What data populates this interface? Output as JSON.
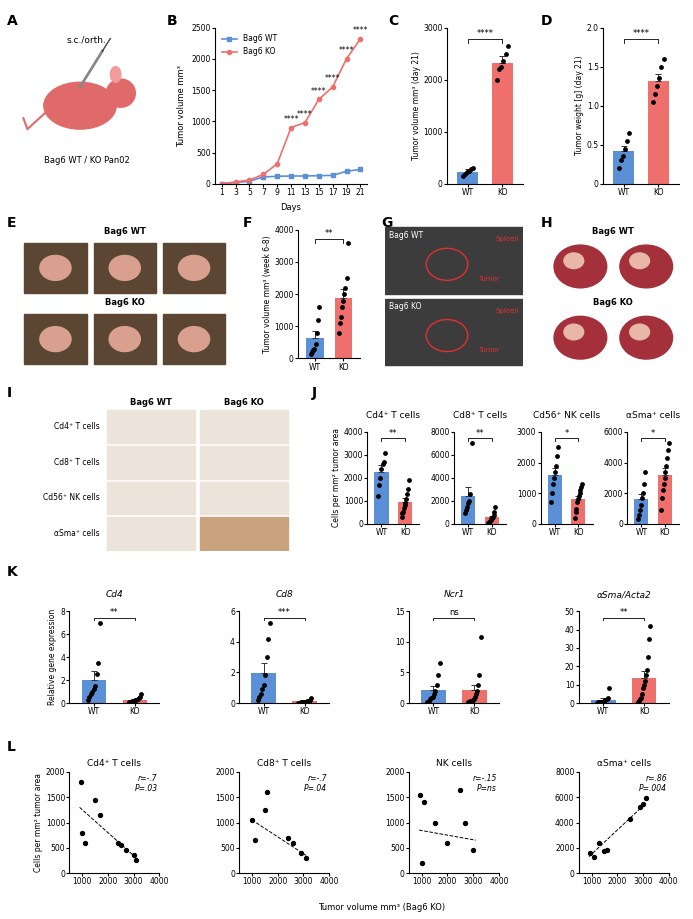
{
  "panel_labels": [
    "A",
    "B",
    "C",
    "D",
    "E",
    "F",
    "G",
    "H",
    "I",
    "J",
    "K",
    "L"
  ],
  "schematic": {
    "route": "s.c./orth.",
    "label": "Bag6 WT / KO Pan02"
  },
  "photos_E": {
    "rows": [
      "Bag6 WT",
      "Bag6 KO"
    ]
  },
  "ultrasound_G": [
    {
      "label": "Bag6 WT",
      "marks": [
        "Spleen",
        "Tumor"
      ]
    },
    {
      "label": "Bag6 KO",
      "marks": [
        "Spleen",
        "Tumor"
      ]
    }
  ],
  "organs_H": {
    "rows": [
      "Bag6 WT",
      "Bag6 KO"
    ]
  },
  "ihc_I": {
    "columns": [
      "Bag6 WT",
      "Bag6 KO"
    ],
    "rows": [
      "Cd4⁺ T cells",
      "Cd8⁺ T cells",
      "Cd56⁺ NK cells",
      "αSma⁺ cells"
    ]
  },
  "shared_xlabel_L": "Tumor volume mm³ (Bag6 KO)",
  "chart_data": [
    {
      "panel": "B",
      "type": "line",
      "xlabel": "Days",
      "ylabel": "Tumor volume mm³",
      "x": [
        1,
        3,
        5,
        7,
        9,
        11,
        13,
        15,
        17,
        19,
        21
      ],
      "xlim": [
        0,
        22
      ],
      "xticks": [
        1,
        3,
        5,
        7,
        9,
        11,
        13,
        15,
        17,
        19,
        21
      ],
      "ylim": [
        0,
        2500
      ],
      "yticks": [
        0,
        500,
        1000,
        1500,
        2000,
        2500
      ],
      "legend": "upper left",
      "series": [
        {
          "name": "Bag6 WT",
          "color": "#5b8fd6",
          "marker": "square",
          "values": [
            0,
            20,
            40,
            110,
            120,
            125,
            125,
            130,
            135,
            200,
            230
          ]
        },
        {
          "name": "Bag6 KO",
          "color": "#ef6f6c",
          "marker": "circle",
          "values": [
            0,
            30,
            60,
            150,
            320,
            900,
            980,
            1350,
            1550,
            2000,
            2320
          ]
        }
      ],
      "significance": [
        {
          "x": 11,
          "text": "****"
        },
        {
          "x": 13,
          "text": "****"
        },
        {
          "x": 15,
          "text": "****"
        },
        {
          "x": 17,
          "text": "****"
        },
        {
          "x": 19,
          "text": "****"
        },
        {
          "x": 21,
          "text": "****"
        }
      ]
    },
    {
      "panel": "C",
      "type": "bar",
      "categories": [
        "WT",
        "KO"
      ],
      "values": [
        230,
        2325
      ],
      "errors": [
        45,
        130
      ],
      "points": [
        [
          150,
          180,
          220,
          250,
          280,
          300
        ],
        [
          2000,
          2200,
          2250,
          2350,
          2500,
          2650
        ]
      ],
      "colors": [
        "#5b8fd6",
        "#ef6f6c"
      ],
      "ylabel": "Tumor volume mm³ (day 21)",
      "ylim": [
        0,
        3000
      ],
      "yticks": [
        0,
        1000,
        2000,
        3000
      ],
      "significance": "****"
    },
    {
      "panel": "D",
      "type": "bar",
      "categories": [
        "WT",
        "KO"
      ],
      "values": [
        0.42,
        1.32
      ],
      "errors": [
        0.07,
        0.09
      ],
      "points": [
        [
          0.2,
          0.3,
          0.35,
          0.45,
          0.55,
          0.65
        ],
        [
          1.05,
          1.15,
          1.25,
          1.35,
          1.5,
          1.6
        ]
      ],
      "colors": [
        "#5b8fd6",
        "#ef6f6c"
      ],
      "ylabel": "Tumor weight [g] (day 21)",
      "ylim": [
        0,
        2.0
      ],
      "yticks": [
        0,
        0.5,
        {
          "value": 1,
          "label": "1.0"
        },
        1.5,
        {
          "value": 2,
          "label": "2.0"
        }
      ],
      "significance": "****"
    },
    {
      "panel": "F",
      "type": "bar",
      "categories": [
        "WT",
        "KO"
      ],
      "values": [
        620,
        1880
      ],
      "errors": [
        230,
        290
      ],
      "points": [
        [
          150,
          200,
          250,
          300,
          450,
          800,
          1200,
          1600
        ],
        [
          800,
          1100,
          1300,
          1600,
          1800,
          2000,
          2200,
          2500,
          3600
        ]
      ],
      "colors": [
        "#5b8fd6",
        "#ef6f6c"
      ],
      "ylabel": "Tumor volume mm³ (week 6-8)",
      "ylim": [
        0,
        4000
      ],
      "yticks": [
        0,
        1000,
        2000,
        3000,
        4000
      ],
      "significance": "**"
    },
    {
      "panel": "J",
      "type": "bar",
      "title": "Cd4⁺ T cells",
      "ylabel": "Cells per mm² tumor area",
      "categories": [
        "WT",
        "KO"
      ],
      "values": [
        2240,
        945
      ],
      "errors": [
        300,
        170
      ],
      "points": [
        [
          1200,
          1700,
          2000,
          2400,
          2600,
          2700,
          3100
        ],
        [
          300,
          450,
          500,
          700,
          800,
          900,
          1100,
          1300,
          1500,
          1900
        ]
      ],
      "colors": [
        "#5b8fd6",
        "#ef6f6c"
      ],
      "ylim": [
        0,
        4000
      ],
      "yticks": [
        0,
        1000,
        2000,
        3000,
        4000
      ],
      "significance": "**"
    },
    {
      "type": "bar",
      "title": "Cd8⁺ T cells",
      "categories": [
        "WT",
        "KO"
      ],
      "values": [
        2430,
        565
      ],
      "errors": [
        800,
        140
      ],
      "points": [
        [
          900,
          1200,
          1500,
          1800,
          2000,
          2600,
          7000
        ],
        [
          100,
          200,
          250,
          300,
          400,
          500,
          600,
          800,
          1000,
          1500
        ]
      ],
      "colors": [
        "#5b8fd6",
        "#ef6f6c"
      ],
      "ylim": [
        0,
        8000
      ],
      "yticks": [
        0,
        2000,
        4000,
        6000,
        8000
      ],
      "significance": "**"
    },
    {
      "type": "bar",
      "title": "Cd56⁺ NK cells",
      "categories": [
        "WT",
        "KO"
      ],
      "values": [
        1600,
        810
      ],
      "errors": [
        220,
        110
      ],
      "points": [
        [
          700,
          1000,
          1300,
          1500,
          1700,
          1900,
          2200,
          2500
        ],
        [
          200,
          400,
          500,
          700,
          800,
          900,
          1000,
          1100,
          1200,
          1300
        ]
      ],
      "colors": [
        "#5b8fd6",
        "#ef6f6c"
      ],
      "ylim": [
        0,
        3000
      ],
      "yticks": [
        0,
        1000,
        2000,
        3000
      ],
      "significance": "*"
    },
    {
      "type": "bar",
      "title": "αSma⁺ cells",
      "categories": [
        "WT",
        "KO"
      ],
      "values": [
        1590,
        3200
      ],
      "errors": [
        380,
        450
      ],
      "points": [
        [
          300,
          600,
          900,
          1200,
          1700,
          2000,
          2600,
          3400
        ],
        [
          900,
          1700,
          2200,
          2600,
          3000,
          3400,
          3800,
          4300,
          4800,
          5300
        ]
      ],
      "colors": [
        "#5b8fd6",
        "#ef6f6c"
      ],
      "ylim": [
        0,
        6000
      ],
      "yticks": [
        0,
        2000,
        4000,
        6000
      ],
      "significance": "*"
    },
    {
      "panel": "K",
      "type": "bar",
      "title": "Cd4",
      "ylabel": "Relative gene expression",
      "categories": [
        "WT",
        "KO"
      ],
      "values": [
        2.03,
        0.28
      ],
      "errors": [
        0.8,
        0.06
      ],
      "points": [
        [
          0.3,
          0.5,
          0.8,
          1.0,
          1.2,
          1.5,
          2.5,
          3.5,
          7.0
        ],
        [
          0.05,
          0.1,
          0.1,
          0.15,
          0.2,
          0.2,
          0.25,
          0.3,
          0.35,
          0.4,
          0.5,
          0.8
        ]
      ],
      "colors": [
        "#5b8fd6",
        "#ef6f6c"
      ],
      "ylim": [
        0,
        8
      ],
      "yticks": [
        0,
        2,
        4,
        6,
        8
      ],
      "significance": "**"
    },
    {
      "type": "bar",
      "title": "Cd8",
      "categories": [
        "WT",
        "KO"
      ],
      "values": [
        1.94,
        0.11
      ],
      "errors": [
        0.65,
        0.02
      ],
      "points": [
        [
          0.2,
          0.4,
          0.6,
          0.9,
          1.2,
          1.8,
          3.0,
          4.2,
          5.2
        ],
        [
          0.02,
          0.03,
          0.05,
          0.05,
          0.06,
          0.08,
          0.1,
          0.1,
          0.12,
          0.15,
          0.2,
          0.3
        ]
      ],
      "colors": [
        "#5b8fd6",
        "#ef6f6c"
      ],
      "ylim": [
        0,
        6
      ],
      "yticks": [
        0,
        2,
        4,
        6
      ],
      "significance": "***"
    },
    {
      "type": "bar",
      "title": "Ncr1",
      "categories": [
        "WT",
        "KO"
      ],
      "values": [
        2.05,
        2.08
      ],
      "errors": [
        0.65,
        0.9
      ],
      "points": [
        [
          0.2,
          0.4,
          0.6,
          0.8,
          1.0,
          1.5,
          2.0,
          3.0,
          4.5,
          6.5
        ],
        [
          0.1,
          0.2,
          0.3,
          0.4,
          0.5,
          0.7,
          1.0,
          1.5,
          2.0,
          3.0,
          4.5,
          10.8
        ]
      ],
      "colors": [
        "#5b8fd6",
        "#ef6f6c"
      ],
      "ylim": [
        0,
        15
      ],
      "yticks": [
        0,
        5,
        10,
        15
      ],
      "significance": "ns"
    },
    {
      "type": "bar",
      "title": "αSma/Acta2",
      "categories": [
        "WT",
        "KO"
      ],
      "values": [
        1.79,
        13.6
      ],
      "errors": [
        0.75,
        3.6
      ],
      "points": [
        [
          0.2,
          0.3,
          0.5,
          0.6,
          0.8,
          1.0,
          1.5,
          2.0,
          3.0,
          8.0
        ],
        [
          0.5,
          1,
          2,
          3,
          5,
          8,
          10,
          12,
          15,
          18,
          25,
          35,
          42
        ]
      ],
      "colors": [
        "#5b8fd6",
        "#ef6f6c"
      ],
      "ylim": [
        0,
        50
      ],
      "yticks": [
        0,
        10,
        20,
        30,
        40,
        50
      ],
      "significance": "**"
    },
    {
      "panel": "L",
      "type": "scatter",
      "title": "Cd4⁺ T cells",
      "ylabel": "Cells per mm² tumor area",
      "x": [
        950,
        1000,
        1100,
        1500,
        1700,
        2400,
        2500,
        2700,
        3000,
        3100
      ],
      "y": [
        1800,
        800,
        600,
        1450,
        1150,
        600,
        550,
        450,
        350,
        250
      ],
      "trend_line": {
        "x": [
          900,
          3100
        ],
        "y": [
          1300,
          300
        ]
      },
      "annotation": "r=-.7\nP=.03",
      "xlim": [
        500,
        4000
      ],
      "xticks": [
        1000,
        2000,
        3000,
        4000
      ],
      "ylim": [
        0,
        2000
      ],
      "yticks": [
        0,
        500,
        1000,
        1500,
        2000
      ]
    },
    {
      "type": "scatter",
      "title": "Cd8⁺ T cells",
      "x": [
        1000,
        1100,
        1500,
        1600,
        2400,
        2600,
        2900,
        3100
      ],
      "y": [
        1050,
        650,
        1250,
        1600,
        700,
        600,
        400,
        300
      ],
      "trend_line": {
        "x": [
          1000,
          3100
        ],
        "y": [
          1050,
          350
        ]
      },
      "annotation": "r=-.7\nP=.04",
      "xlim": [
        500,
        4000
      ],
      "xticks": [
        1000,
        2000,
        3000,
        4000
      ],
      "ylim": [
        0,
        2000
      ],
      "yticks": [
        0,
        500,
        1000,
        1500,
        2000
      ]
    },
    {
      "type": "scatter",
      "title": "NK cells",
      "x": [
        950,
        1000,
        1100,
        1500,
        2000,
        2500,
        2700,
        3000
      ],
      "y": [
        1550,
        200,
        1400,
        1000,
        600,
        1650,
        1000,
        450
      ],
      "trend_line": {
        "x": [
          900,
          3100
        ],
        "y": [
          850,
          650
        ]
      },
      "annotation": "r=-.15\nP=ns",
      "xlim": [
        500,
        4000
      ],
      "xticks": [
        1000,
        2000,
        3000,
        4000
      ],
      "ylim": [
        0,
        2000
      ],
      "yticks": [
        0,
        500,
        1000,
        1500,
        2000
      ]
    },
    {
      "type": "scatter",
      "title": "αSma⁺ cells",
      "x": [
        950,
        1100,
        1300,
        1500,
        1600,
        2500,
        2900,
        3000,
        3100
      ],
      "y": [
        1600,
        1300,
        2400,
        1750,
        1800,
        4300,
        5200,
        5500,
        5900
      ],
      "trend_line": {
        "x": [
          900,
          3100
        ],
        "y": [
          1300,
          5500
        ]
      },
      "annotation": "r=.86\nP=.004",
      "xlim": [
        500,
        4000
      ],
      "xticks": [
        1000,
        2000,
        3000,
        4000
      ],
      "ylim": [
        0,
        8000
      ],
      "yticks": [
        0,
        2000,
        4000,
        6000,
        8000
      ]
    }
  ]
}
